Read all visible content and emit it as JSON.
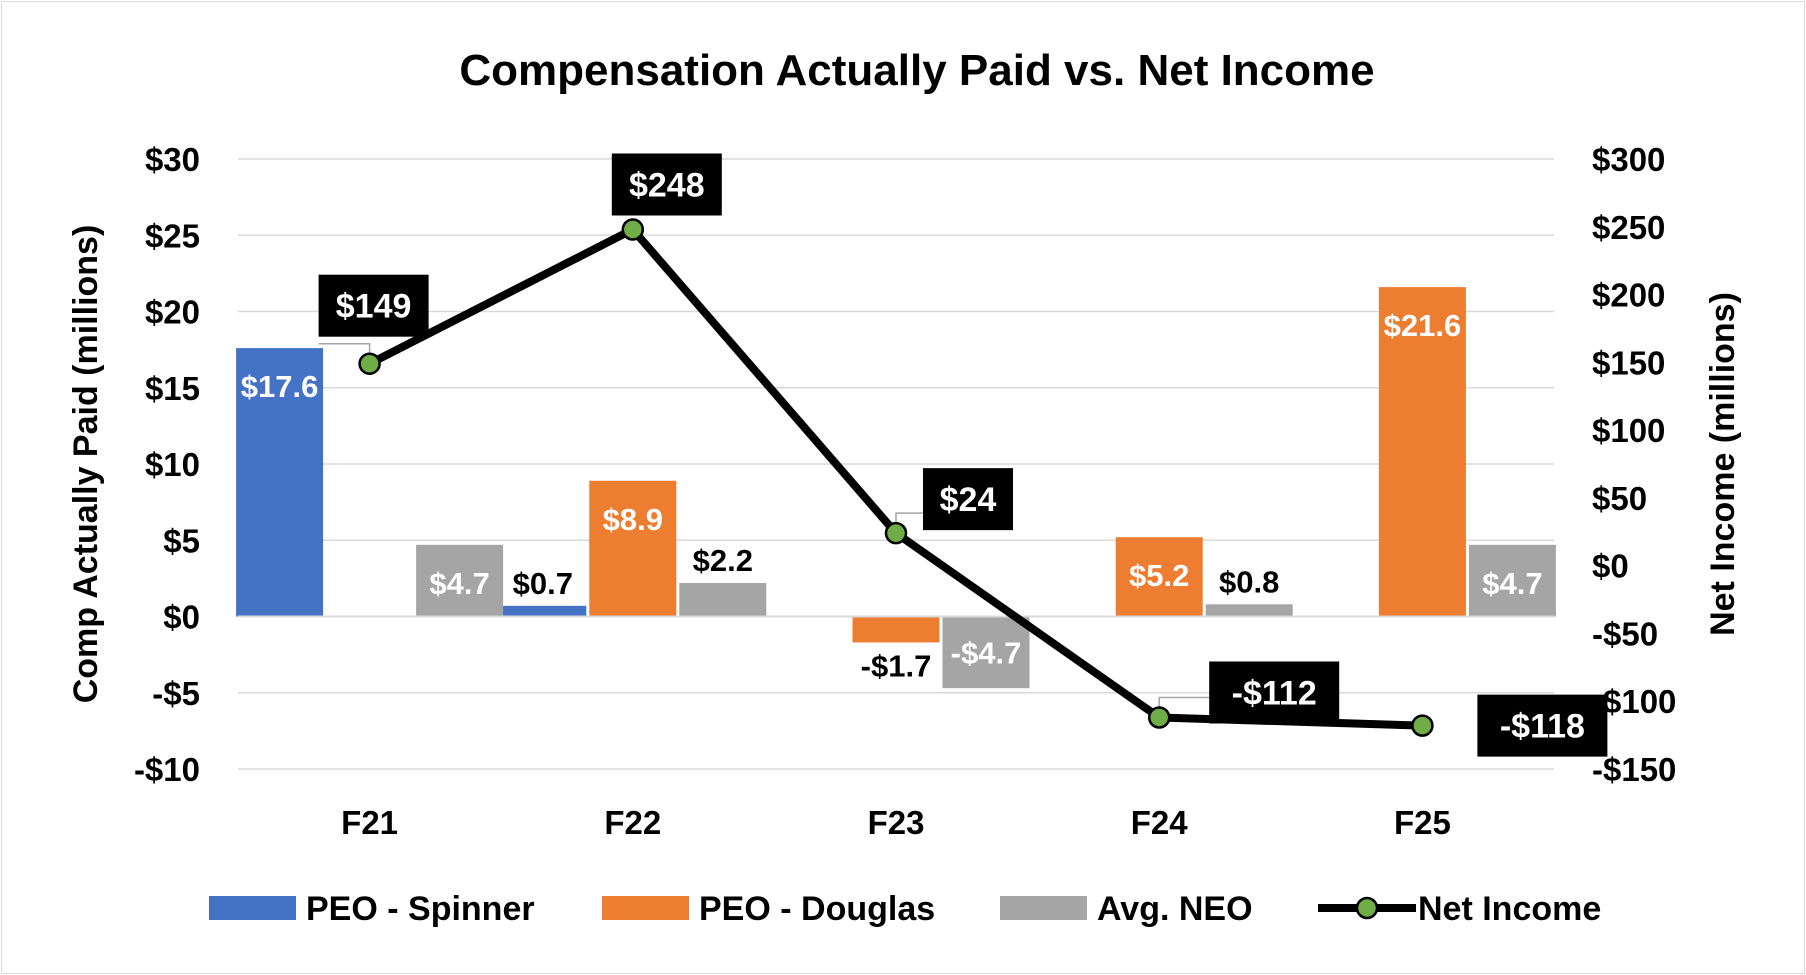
{
  "chart_data": {
    "type": "bar+line",
    "title": "Compensation Actually Paid vs. Net Income",
    "categories": [
      "F21",
      "F22",
      "F23",
      "F24",
      "F25"
    ],
    "y_left": {
      "label": "Comp Actually Paid (millions)",
      "range": [
        -10,
        30
      ],
      "ticks": [
        30,
        25,
        20,
        15,
        10,
        5,
        0,
        -5,
        -10
      ],
      "tick_labels": [
        "$30",
        "$25",
        "$20",
        "$15",
        "$10",
        "$5",
        "$0",
        "-$5",
        "-$10"
      ]
    },
    "y_right": {
      "label": "Net Income (millions)",
      "range": [
        -150,
        300
      ],
      "ticks": [
        300,
        250,
        200,
        150,
        100,
        50,
        0,
        -50,
        -100,
        -150
      ],
      "tick_labels": [
        "$300",
        "$250",
        "$200",
        "$150",
        "$100",
        "$50",
        "$0",
        "-$50",
        "-$100",
        "-$150"
      ]
    },
    "series": [
      {
        "name": "PEO - Spinner",
        "type": "bar",
        "axis": "left",
        "color": "#4472C4",
        "values": [
          17.6,
          0.7,
          null,
          null,
          null
        ],
        "labels": [
          "$17.6",
          "$0.7",
          "",
          "",
          ""
        ]
      },
      {
        "name": "PEO - Douglas",
        "type": "bar",
        "axis": "left",
        "color": "#ED7D31",
        "values": [
          null,
          8.9,
          -1.7,
          5.2,
          21.6
        ],
        "labels": [
          "",
          "$8.9",
          "-$1.7",
          "$5.2",
          "$21.6"
        ]
      },
      {
        "name": "Avg. NEO",
        "type": "bar",
        "axis": "left",
        "color": "#A5A5A5",
        "values": [
          4.7,
          2.2,
          -4.7,
          0.8,
          4.7
        ],
        "labels": [
          "$4.7",
          "$2.2",
          "-$4.7",
          "$0.8",
          "$4.7"
        ]
      },
      {
        "name": "Net Income",
        "type": "line",
        "axis": "right",
        "color": "#000000",
        "marker_color": "#70AD47",
        "values": [
          149,
          248,
          24,
          -112,
          -118
        ],
        "labels": [
          "$149",
          "$248",
          "$24",
          "-$112",
          "-$118"
        ]
      }
    ],
    "legend": [
      "PEO - Spinner",
      "PEO - Douglas",
      "Avg. NEO",
      "Net Income"
    ],
    "legend_position": "bottom",
    "grid": true
  }
}
